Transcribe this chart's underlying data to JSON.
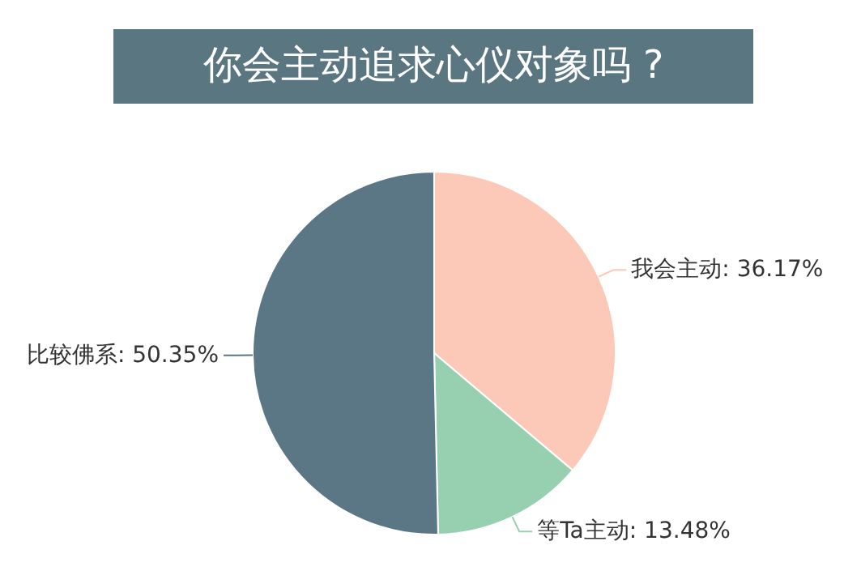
{
  "chart_data": {
    "type": "pie",
    "title": "你会主动追求心仪对象吗 ?",
    "categories": [
      "我会主动",
      "等Ta主动",
      "比较佛系"
    ],
    "values": [
      36.17,
      13.48,
      50.35
    ],
    "value_labels": [
      "36.17%",
      "13.48%",
      "50.35%"
    ],
    "colors": [
      "#fcc9b9",
      "#96d0b1",
      "#5b7684"
    ],
    "legend": false
  }
}
